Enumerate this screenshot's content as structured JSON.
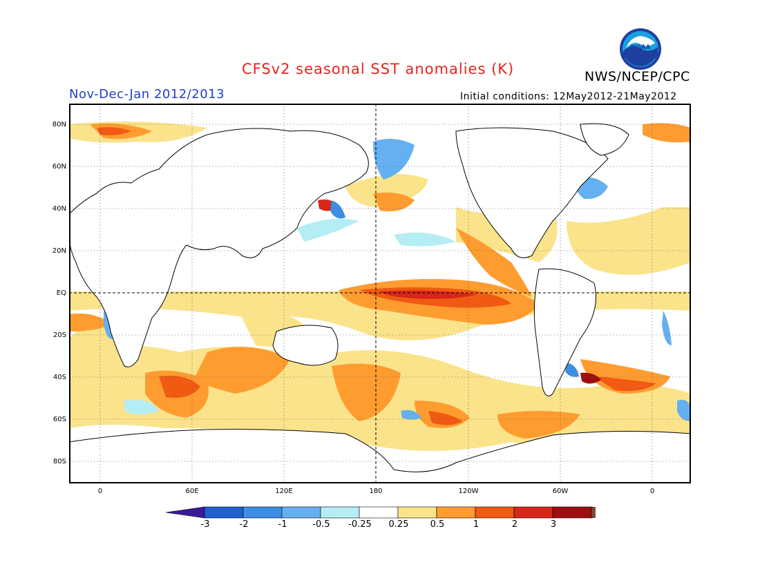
{
  "header": {
    "title": "CFSv2 seasonal SST anomalies (K)",
    "agency": "NWS/NCEP/CPC",
    "season": "Nov-Dec-Jan 2012/2013",
    "initial_conditions": "Initial conditions: 12May2012-21May2012",
    "logo_text": "NOAA"
  },
  "map": {
    "lat_labels": [
      "80N",
      "60N",
      "40N",
      "20N",
      "EQ",
      "20S",
      "40S",
      "60S",
      "80S"
    ],
    "lon_labels": [
      "0",
      "60E",
      "120E",
      "180",
      "120W",
      "60W",
      "0"
    ]
  },
  "colorbar": {
    "labels": [
      "-3",
      "-2",
      "-1",
      "-0.5",
      "-0.25",
      "0.25",
      "0.5",
      "1",
      "2",
      "3"
    ],
    "colors": [
      "#3a1a9a",
      "#1f5fd0",
      "#3c8ee0",
      "#64b0f0",
      "#b4eef4",
      "#ffffff",
      "#fae38a",
      "#ff9c30",
      "#f05a12",
      "#d8261a",
      "#9e0e0e",
      "#7b4a3a"
    ]
  },
  "colors": {
    "title": "#e8231b",
    "season": "#2040c8",
    "light_pos": "#fae38a",
    "orange": "#ff9c30",
    "red_orange": "#f05a12",
    "red": "#d8261a",
    "dark_red": "#9e0e0e",
    "light_neg": "#b4eef4",
    "blue": "#64b0f0",
    "mid_blue": "#3c8ee0"
  }
}
